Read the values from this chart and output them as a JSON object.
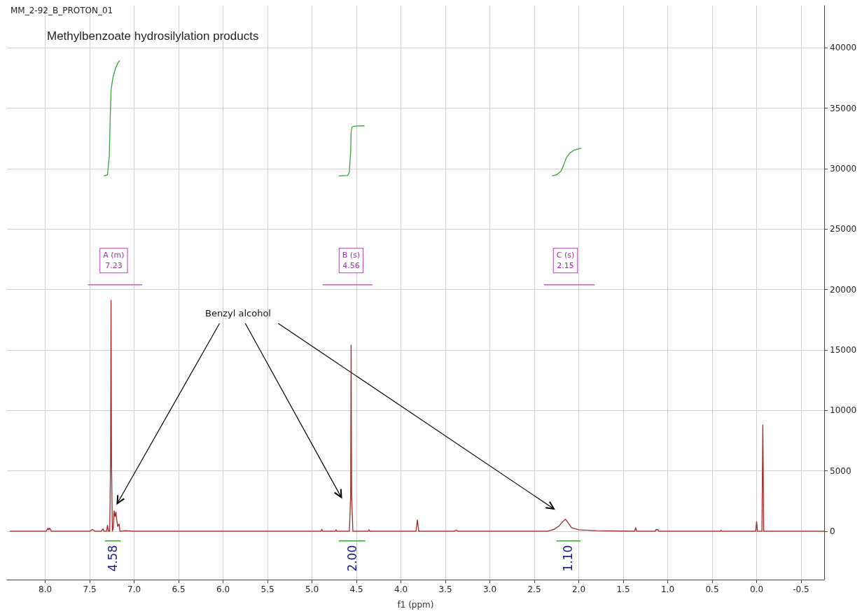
{
  "chart_data": {
    "type": "line",
    "title": "MM_2-92_B_PROTON_01",
    "subtitle": "Methylbenzoate hydrosilylation products",
    "xlabel": "f1 (ppm)",
    "xlim": [
      8.43,
      -0.76
    ],
    "xticks": [
      {
        "value": 8,
        "label": "8.0"
      },
      7.5,
      {
        "value": 7,
        "label": "7.0"
      },
      6.5,
      {
        "value": 6,
        "label": "6.0"
      },
      5.5,
      {
        "value": 5,
        "label": "5.0"
      },
      4.5,
      {
        "value": 4,
        "label": "4.0"
      },
      3.5,
      {
        "value": 3,
        "label": "3.0"
      },
      2.5,
      {
        "value": 2,
        "label": "2.0"
      },
      1.5,
      {
        "value": 1,
        "label": "1.0"
      },
      0.5,
      {
        "value": 0,
        "label": "0.0"
      },
      -0.5
    ],
    "ylim": [
      -4000,
      43500
    ],
    "yticks": [
      0,
      5000,
      10000,
      15000,
      20000,
      25000,
      30000,
      35000,
      40000
    ],
    "grid": true,
    "marker": "none",
    "line_style": "solid",
    "series": [
      {
        "color": "#a02828",
        "x": [
          8.4,
          7.99,
          7.97,
          7.96,
          7.95,
          7.93,
          7.5,
          7.47,
          7.44,
          7.37,
          7.35,
          7.34,
          7.31,
          7.3,
          7.29,
          7.275,
          7.265,
          7.26,
          7.255,
          7.245,
          7.235,
          7.225,
          7.215,
          7.205,
          7.195,
          7.185,
          7.17,
          7.16,
          7.1,
          7.0,
          4.9,
          4.89,
          4.88,
          4.74,
          4.73,
          4.72,
          4.58,
          4.565,
          4.56,
          4.555,
          4.54,
          4.37,
          4.36,
          4.35,
          3.83,
          3.815,
          3.8,
          3.4,
          3.38,
          3.36,
          2.35,
          2.28,
          2.22,
          2.18,
          2.15,
          2.12,
          2.08,
          2.0,
          1.8,
          1.37,
          1.36,
          1.35,
          1.14,
          1.13,
          1.12,
          1.11,
          1.1,
          0.41,
          0.4,
          0.39,
          0.01,
          0.0,
          -0.01,
          -0.06,
          -0.07,
          -0.08,
          -0.76
        ],
        "values": [
          0,
          0,
          250,
          120,
          250,
          0,
          0,
          150,
          0,
          0,
          200,
          0,
          0,
          500,
          0,
          0,
          6000,
          19100,
          6000,
          0,
          300,
          1700,
          1200,
          1600,
          900,
          400,
          600,
          0,
          50,
          0,
          0,
          150,
          0,
          0,
          120,
          0,
          0,
          3000,
          15400,
          3000,
          0,
          0,
          120,
          0,
          0,
          950,
          0,
          0,
          100,
          0,
          0,
          150,
          450,
          800,
          1000,
          700,
          300,
          120,
          50,
          0,
          300,
          0,
          0,
          150,
          100,
          150,
          0,
          0,
          80,
          0,
          0,
          800,
          0,
          0,
          8800,
          0,
          0
        ]
      },
      {
        "color": "#3ca03c",
        "x": [
          7.34,
          7.3,
          7.28,
          7.27,
          7.26,
          7.25,
          7.24,
          7.21,
          7.18,
          7.16
        ],
        "values": [
          29400,
          29500,
          31000,
          34000,
          36500,
          37000,
          37500,
          38300,
          38800,
          38950
        ]
      },
      {
        "color": "#3ca03c",
        "x": [
          4.7,
          4.6,
          4.58,
          4.565,
          4.56,
          4.55,
          4.53,
          4.41
        ],
        "values": [
          29400,
          29450,
          29700,
          31500,
          33000,
          33450,
          33520,
          33550
        ]
      },
      {
        "color": "#3ca03c",
        "x": [
          2.3,
          2.25,
          2.2,
          2.17,
          2.14,
          2.1,
          2.05,
          2.0,
          1.97
        ],
        "values": [
          29400,
          29500,
          29800,
          30300,
          30900,
          31300,
          31550,
          31650,
          31700
        ]
      },
      {
        "color": "#b040b0",
        "x": [
          7.52,
          6.91
        ],
        "values": [
          20400,
          20400
        ]
      },
      {
        "color": "#b040b0",
        "x": [
          4.88,
          4.32
        ],
        "values": [
          20400,
          20400
        ]
      },
      {
        "color": "#b040b0",
        "x": [
          2.39,
          1.82
        ],
        "values": [
          20400,
          20400
        ]
      },
      {
        "color": "#3ca03c",
        "x": [
          7.33,
          7.15
        ],
        "values": [
          -800,
          -800
        ]
      },
      {
        "color": "#3ca03c",
        "x": [
          4.7,
          4.4
        ],
        "values": [
          -800,
          -800
        ]
      },
      {
        "color": "#3ca03c",
        "x": [
          2.25,
          1.98
        ],
        "values": [
          -800,
          -800
        ]
      }
    ],
    "annotations": [
      {
        "text": "A (m)\n7.23",
        "x": 7.23,
        "y": 22400
      },
      {
        "text": "B (s)\n4.56",
        "x": 4.56,
        "y": 22400
      },
      {
        "text": "C (s)\n2.15",
        "x": 2.15,
        "y": 22400
      },
      {
        "text": "4.58",
        "x": 7.24,
        "y": -800
      },
      {
        "text": "2.00",
        "x": 4.55,
        "y": -800
      },
      {
        "text": "1.10",
        "x": 2.12,
        "y": -800
      },
      "Benzyl alcohol"
    ]
  }
}
